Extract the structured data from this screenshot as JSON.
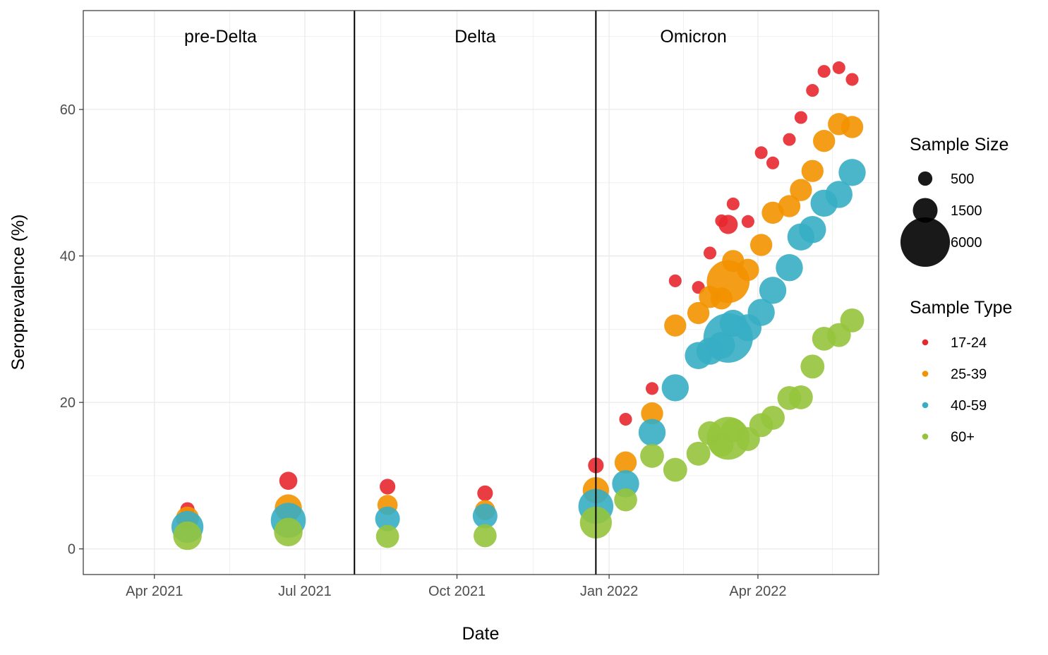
{
  "chart_data": {
    "type": "scatter",
    "xlabel": "Date",
    "ylabel": "Seroprevalence (%)",
    "x_ticks": [
      "2021-04-01",
      "2021-07-01",
      "2021-10-01",
      "2022-01-01",
      "2022-04-01"
    ],
    "x_tick_labels": [
      "Apr 2021",
      "Jul 2021",
      "Oct 2021",
      "Jan 2022",
      "Apr 2022"
    ],
    "xlim": [
      "2021-02-17",
      "2022-06-13"
    ],
    "y_ticks": [
      0,
      20,
      40,
      60
    ],
    "ylim": [
      -3.5,
      73.5
    ],
    "grid": true,
    "period_boundaries": [
      "2021-07-31",
      "2021-12-24"
    ],
    "periods": [
      {
        "label": "pre-Delta",
        "center": "2021-05-11"
      },
      {
        "label": "Delta",
        "center": "2021-10-12"
      },
      {
        "label": "Omicron",
        "center": "2022-02-21"
      }
    ],
    "legends": {
      "size": {
        "title": "Sample Size",
        "entries": [
          {
            "label": "500",
            "value": 500
          },
          {
            "label": "1500",
            "value": 1500
          },
          {
            "label": "6000",
            "value": 6000
          }
        ]
      },
      "color": {
        "title": "Sample Type",
        "entries": [
          {
            "label": "17-24",
            "color": "#e8272f"
          },
          {
            "label": "25-39",
            "color": "#f39200"
          },
          {
            "label": "40-59",
            "color": "#37aec4"
          },
          {
            "label": "60+",
            "color": "#95c43c"
          }
        ]
      },
      "placement": "right"
    },
    "series": [
      {
        "name": "17-24",
        "color": "#e8272f",
        "points": [
          {
            "x": "2021-04-21",
            "y": 5.4,
            "size": 500
          },
          {
            "x": "2021-06-21",
            "y": 9.3,
            "size": 800
          },
          {
            "x": "2021-08-20",
            "y": 8.5,
            "size": 600
          },
          {
            "x": "2021-10-18",
            "y": 7.6,
            "size": 600
          },
          {
            "x": "2021-12-24",
            "y": 11.4,
            "size": 600
          },
          {
            "x": "2022-01-11",
            "y": 17.7,
            "size": 400
          },
          {
            "x": "2022-01-27",
            "y": 21.9,
            "size": 400
          },
          {
            "x": "2022-02-10",
            "y": 36.6,
            "size": 400
          },
          {
            "x": "2022-02-24",
            "y": 35.7,
            "size": 400
          },
          {
            "x": "2022-03-03",
            "y": 40.4,
            "size": 400
          },
          {
            "x": "2022-03-10",
            "y": 44.8,
            "size": 400
          },
          {
            "x": "2022-03-14",
            "y": 44.3,
            "size": 900
          },
          {
            "x": "2022-03-17",
            "y": 47.1,
            "size": 400
          },
          {
            "x": "2022-03-26",
            "y": 44.7,
            "size": 400
          },
          {
            "x": "2022-04-03",
            "y": 54.1,
            "size": 400
          },
          {
            "x": "2022-04-10",
            "y": 52.7,
            "size": 400
          },
          {
            "x": "2022-04-20",
            "y": 55.9,
            "size": 400
          },
          {
            "x": "2022-04-27",
            "y": 58.9,
            "size": 400
          },
          {
            "x": "2022-05-04",
            "y": 62.6,
            "size": 400
          },
          {
            "x": "2022-05-11",
            "y": 65.2,
            "size": 400
          },
          {
            "x": "2022-05-20",
            "y": 65.7,
            "size": 400
          },
          {
            "x": "2022-05-28",
            "y": 64.1,
            "size": 400
          }
        ]
      },
      {
        "name": "25-39",
        "color": "#f39200",
        "points": [
          {
            "x": "2021-04-21",
            "y": 4.2,
            "size": 1300
          },
          {
            "x": "2021-06-21",
            "y": 5.6,
            "size": 1800
          },
          {
            "x": "2021-08-20",
            "y": 6.0,
            "size": 1000
          },
          {
            "x": "2021-10-18",
            "y": 5.3,
            "size": 1000
          },
          {
            "x": "2021-12-24",
            "y": 8.0,
            "size": 1700
          },
          {
            "x": "2022-01-11",
            "y": 11.8,
            "size": 1200
          },
          {
            "x": "2022-01-27",
            "y": 18.5,
            "size": 1200
          },
          {
            "x": "2022-02-10",
            "y": 30.5,
            "size": 1200
          },
          {
            "x": "2022-02-24",
            "y": 32.2,
            "size": 1200
          },
          {
            "x": "2022-03-03",
            "y": 34.4,
            "size": 1200
          },
          {
            "x": "2022-03-10",
            "y": 34.2,
            "size": 1200
          },
          {
            "x": "2022-03-14",
            "y": 36.5,
            "size": 4500
          },
          {
            "x": "2022-03-17",
            "y": 39.3,
            "size": 1200
          },
          {
            "x": "2022-03-26",
            "y": 38.1,
            "size": 1200
          },
          {
            "x": "2022-04-03",
            "y": 41.5,
            "size": 1200
          },
          {
            "x": "2022-04-10",
            "y": 45.9,
            "size": 1200
          },
          {
            "x": "2022-04-20",
            "y": 46.8,
            "size": 1200
          },
          {
            "x": "2022-04-27",
            "y": 49.0,
            "size": 1200
          },
          {
            "x": "2022-05-04",
            "y": 51.6,
            "size": 1200
          },
          {
            "x": "2022-05-11",
            "y": 55.7,
            "size": 1200
          },
          {
            "x": "2022-05-20",
            "y": 58.0,
            "size": 1200
          },
          {
            "x": "2022-05-28",
            "y": 57.6,
            "size": 1200
          }
        ]
      },
      {
        "name": "40-59",
        "color": "#37aec4",
        "points": [
          {
            "x": "2021-04-21",
            "y": 3.0,
            "size": 2500
          },
          {
            "x": "2021-06-21",
            "y": 3.9,
            "size": 3000
          },
          {
            "x": "2021-08-20",
            "y": 4.1,
            "size": 1500
          },
          {
            "x": "2021-10-18",
            "y": 4.5,
            "size": 1500
          },
          {
            "x": "2021-12-24",
            "y": 5.8,
            "size": 3000
          },
          {
            "x": "2022-01-11",
            "y": 8.9,
            "size": 1800
          },
          {
            "x": "2022-01-27",
            "y": 15.9,
            "size": 1800
          },
          {
            "x": "2022-02-10",
            "y": 22.0,
            "size": 1800
          },
          {
            "x": "2022-02-24",
            "y": 26.4,
            "size": 1800
          },
          {
            "x": "2022-03-03",
            "y": 27.0,
            "size": 1800
          },
          {
            "x": "2022-03-10",
            "y": 27.8,
            "size": 1800
          },
          {
            "x": "2022-03-14",
            "y": 28.8,
            "size": 6000
          },
          {
            "x": "2022-03-17",
            "y": 30.8,
            "size": 1800
          },
          {
            "x": "2022-03-26",
            "y": 30.2,
            "size": 1800
          },
          {
            "x": "2022-04-03",
            "y": 32.3,
            "size": 1800
          },
          {
            "x": "2022-04-10",
            "y": 35.3,
            "size": 1800
          },
          {
            "x": "2022-04-20",
            "y": 38.4,
            "size": 1800
          },
          {
            "x": "2022-04-27",
            "y": 42.6,
            "size": 1800
          },
          {
            "x": "2022-05-04",
            "y": 43.6,
            "size": 1800
          },
          {
            "x": "2022-05-11",
            "y": 47.2,
            "size": 1800
          },
          {
            "x": "2022-05-20",
            "y": 48.4,
            "size": 1800
          },
          {
            "x": "2022-05-28",
            "y": 51.4,
            "size": 1800
          }
        ]
      },
      {
        "name": "60+",
        "color": "#95c43c",
        "points": [
          {
            "x": "2021-04-21",
            "y": 1.8,
            "size": 2000
          },
          {
            "x": "2021-06-21",
            "y": 2.3,
            "size": 2000
          },
          {
            "x": "2021-08-20",
            "y": 1.7,
            "size": 1300
          },
          {
            "x": "2021-10-18",
            "y": 1.8,
            "size": 1300
          },
          {
            "x": "2021-12-24",
            "y": 3.6,
            "size": 2500
          },
          {
            "x": "2022-01-11",
            "y": 6.7,
            "size": 1300
          },
          {
            "x": "2022-01-27",
            "y": 12.7,
            "size": 1400
          },
          {
            "x": "2022-02-10",
            "y": 10.8,
            "size": 1400
          },
          {
            "x": "2022-02-24",
            "y": 13.0,
            "size": 1400
          },
          {
            "x": "2022-03-03",
            "y": 15.8,
            "size": 1400
          },
          {
            "x": "2022-03-10",
            "y": 14.2,
            "size": 1400
          },
          {
            "x": "2022-03-14",
            "y": 15.1,
            "size": 4500
          },
          {
            "x": "2022-03-17",
            "y": 16.2,
            "size": 1400
          },
          {
            "x": "2022-03-26",
            "y": 15.0,
            "size": 1400
          },
          {
            "x": "2022-04-03",
            "y": 16.9,
            "size": 1400
          },
          {
            "x": "2022-04-10",
            "y": 17.9,
            "size": 1400
          },
          {
            "x": "2022-04-20",
            "y": 20.6,
            "size": 1400
          },
          {
            "x": "2022-04-27",
            "y": 20.7,
            "size": 1400
          },
          {
            "x": "2022-05-04",
            "y": 24.9,
            "size": 1400
          },
          {
            "x": "2022-05-11",
            "y": 28.7,
            "size": 1400
          },
          {
            "x": "2022-05-20",
            "y": 29.2,
            "size": 1400
          },
          {
            "x": "2022-05-28",
            "y": 31.2,
            "size": 1400
          }
        ]
      }
    ]
  }
}
